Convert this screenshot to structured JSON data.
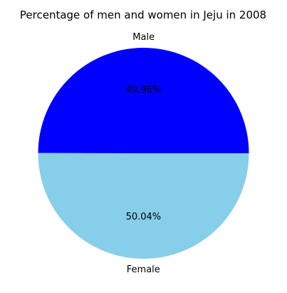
{
  "chart_data": {
    "type": "pie",
    "title": "Percentage of men and women in Jeju in 2008",
    "categories": [
      "Male",
      "Female"
    ],
    "values": [
      49.96,
      50.04
    ],
    "value_labels": [
      "49.96%",
      "50.04%"
    ],
    "colors": [
      "#0000ff",
      "#87ceeb"
    ],
    "start_angle_deg": 0,
    "direction": "counterclockwise",
    "legend": "none"
  }
}
